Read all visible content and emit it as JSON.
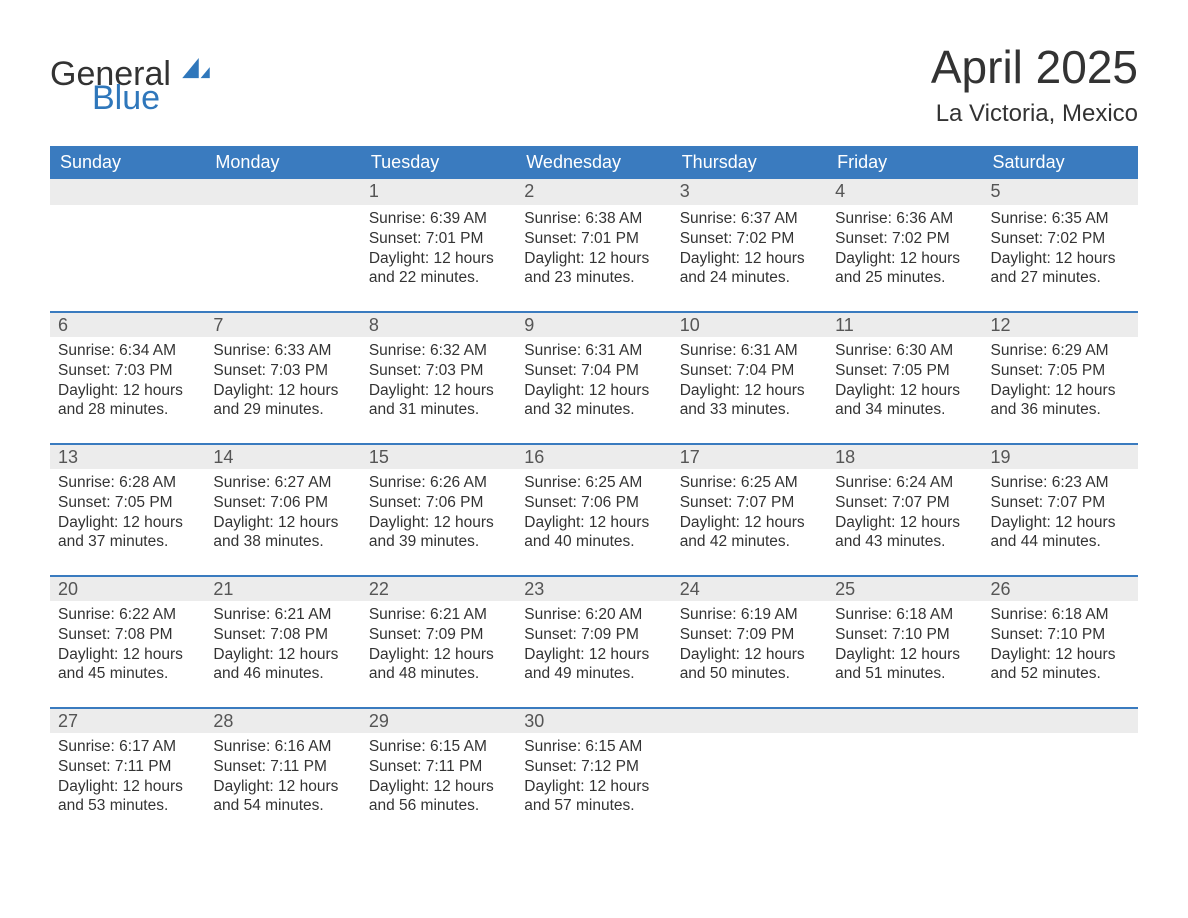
{
  "brand": {
    "word1": "General",
    "word2": "Blue"
  },
  "title": {
    "month": "April 2025",
    "location": "La Victoria, Mexico"
  },
  "colors": {
    "header_bg": "#3a7bbf",
    "header_text": "#ffffff",
    "daynum_bg": "#ececec",
    "row_divider": "#3a7bbf",
    "text": "#333333",
    "brand_blue": "#2f77bb",
    "page_bg": "#ffffff"
  },
  "calendar": {
    "type": "table",
    "columns": [
      "Sunday",
      "Monday",
      "Tuesday",
      "Wednesday",
      "Thursday",
      "Friday",
      "Saturday"
    ],
    "weeks": [
      [
        null,
        null,
        {
          "n": "1",
          "sunrise": "Sunrise: 6:39 AM",
          "sunset": "Sunset: 7:01 PM",
          "daylight": "Daylight: 12 hours and 22 minutes."
        },
        {
          "n": "2",
          "sunrise": "Sunrise: 6:38 AM",
          "sunset": "Sunset: 7:01 PM",
          "daylight": "Daylight: 12 hours and 23 minutes."
        },
        {
          "n": "3",
          "sunrise": "Sunrise: 6:37 AM",
          "sunset": "Sunset: 7:02 PM",
          "daylight": "Daylight: 12 hours and 24 minutes."
        },
        {
          "n": "4",
          "sunrise": "Sunrise: 6:36 AM",
          "sunset": "Sunset: 7:02 PM",
          "daylight": "Daylight: 12 hours and 25 minutes."
        },
        {
          "n": "5",
          "sunrise": "Sunrise: 6:35 AM",
          "sunset": "Sunset: 7:02 PM",
          "daylight": "Daylight: 12 hours and 27 minutes."
        }
      ],
      [
        {
          "n": "6",
          "sunrise": "Sunrise: 6:34 AM",
          "sunset": "Sunset: 7:03 PM",
          "daylight": "Daylight: 12 hours and 28 minutes."
        },
        {
          "n": "7",
          "sunrise": "Sunrise: 6:33 AM",
          "sunset": "Sunset: 7:03 PM",
          "daylight": "Daylight: 12 hours and 29 minutes."
        },
        {
          "n": "8",
          "sunrise": "Sunrise: 6:32 AM",
          "sunset": "Sunset: 7:03 PM",
          "daylight": "Daylight: 12 hours and 31 minutes."
        },
        {
          "n": "9",
          "sunrise": "Sunrise: 6:31 AM",
          "sunset": "Sunset: 7:04 PM",
          "daylight": "Daylight: 12 hours and 32 minutes."
        },
        {
          "n": "10",
          "sunrise": "Sunrise: 6:31 AM",
          "sunset": "Sunset: 7:04 PM",
          "daylight": "Daylight: 12 hours and 33 minutes."
        },
        {
          "n": "11",
          "sunrise": "Sunrise: 6:30 AM",
          "sunset": "Sunset: 7:05 PM",
          "daylight": "Daylight: 12 hours and 34 minutes."
        },
        {
          "n": "12",
          "sunrise": "Sunrise: 6:29 AM",
          "sunset": "Sunset: 7:05 PM",
          "daylight": "Daylight: 12 hours and 36 minutes."
        }
      ],
      [
        {
          "n": "13",
          "sunrise": "Sunrise: 6:28 AM",
          "sunset": "Sunset: 7:05 PM",
          "daylight": "Daylight: 12 hours and 37 minutes."
        },
        {
          "n": "14",
          "sunrise": "Sunrise: 6:27 AM",
          "sunset": "Sunset: 7:06 PM",
          "daylight": "Daylight: 12 hours and 38 minutes."
        },
        {
          "n": "15",
          "sunrise": "Sunrise: 6:26 AM",
          "sunset": "Sunset: 7:06 PM",
          "daylight": "Daylight: 12 hours and 39 minutes."
        },
        {
          "n": "16",
          "sunrise": "Sunrise: 6:25 AM",
          "sunset": "Sunset: 7:06 PM",
          "daylight": "Daylight: 12 hours and 40 minutes."
        },
        {
          "n": "17",
          "sunrise": "Sunrise: 6:25 AM",
          "sunset": "Sunset: 7:07 PM",
          "daylight": "Daylight: 12 hours and 42 minutes."
        },
        {
          "n": "18",
          "sunrise": "Sunrise: 6:24 AM",
          "sunset": "Sunset: 7:07 PM",
          "daylight": "Daylight: 12 hours and 43 minutes."
        },
        {
          "n": "19",
          "sunrise": "Sunrise: 6:23 AM",
          "sunset": "Sunset: 7:07 PM",
          "daylight": "Daylight: 12 hours and 44 minutes."
        }
      ],
      [
        {
          "n": "20",
          "sunrise": "Sunrise: 6:22 AM",
          "sunset": "Sunset: 7:08 PM",
          "daylight": "Daylight: 12 hours and 45 minutes."
        },
        {
          "n": "21",
          "sunrise": "Sunrise: 6:21 AM",
          "sunset": "Sunset: 7:08 PM",
          "daylight": "Daylight: 12 hours and 46 minutes."
        },
        {
          "n": "22",
          "sunrise": "Sunrise: 6:21 AM",
          "sunset": "Sunset: 7:09 PM",
          "daylight": "Daylight: 12 hours and 48 minutes."
        },
        {
          "n": "23",
          "sunrise": "Sunrise: 6:20 AM",
          "sunset": "Sunset: 7:09 PM",
          "daylight": "Daylight: 12 hours and 49 minutes."
        },
        {
          "n": "24",
          "sunrise": "Sunrise: 6:19 AM",
          "sunset": "Sunset: 7:09 PM",
          "daylight": "Daylight: 12 hours and 50 minutes."
        },
        {
          "n": "25",
          "sunrise": "Sunrise: 6:18 AM",
          "sunset": "Sunset: 7:10 PM",
          "daylight": "Daylight: 12 hours and 51 minutes."
        },
        {
          "n": "26",
          "sunrise": "Sunrise: 6:18 AM",
          "sunset": "Sunset: 7:10 PM",
          "daylight": "Daylight: 12 hours and 52 minutes."
        }
      ],
      [
        {
          "n": "27",
          "sunrise": "Sunrise: 6:17 AM",
          "sunset": "Sunset: 7:11 PM",
          "daylight": "Daylight: 12 hours and 53 minutes."
        },
        {
          "n": "28",
          "sunrise": "Sunrise: 6:16 AM",
          "sunset": "Sunset: 7:11 PM",
          "daylight": "Daylight: 12 hours and 54 minutes."
        },
        {
          "n": "29",
          "sunrise": "Sunrise: 6:15 AM",
          "sunset": "Sunset: 7:11 PM",
          "daylight": "Daylight: 12 hours and 56 minutes."
        },
        {
          "n": "30",
          "sunrise": "Sunrise: 6:15 AM",
          "sunset": "Sunset: 7:12 PM",
          "daylight": "Daylight: 12 hours and 57 minutes."
        },
        null,
        null,
        null
      ]
    ]
  }
}
